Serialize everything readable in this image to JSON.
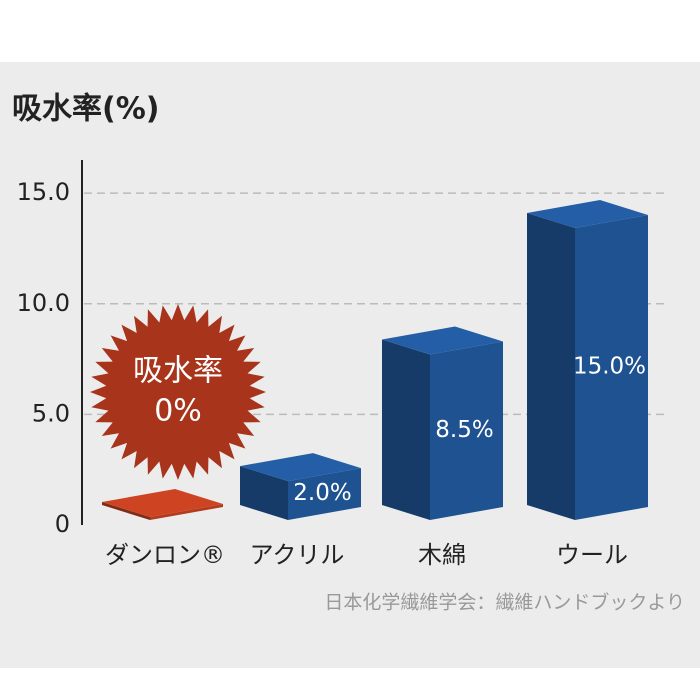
{
  "chart_data": {
    "type": "bar3d",
    "title": "吸水率(%)",
    "categories": [
      "ダンロン®",
      "アクリル",
      "木綿",
      "ウール"
    ],
    "values": [
      0,
      2.0,
      8.5,
      15.0
    ],
    "value_labels": [
      "0%",
      "2.0%",
      "8.5%",
      "15.0%"
    ],
    "colors": [
      "#b33b1e",
      "#1f5291",
      "#1f5291",
      "#1f5291"
    ],
    "ylim": [
      0,
      16.5
    ],
    "yticks": [
      0,
      {
        "value": 5,
        "label": "5.0"
      },
      {
        "value": 10,
        "label": "10.0"
      },
      {
        "value": 15,
        "label": "15.0"
      }
    ],
    "grid": true,
    "annotation": "吸水率",
    "source": "日本化学繊維学会：繊維ハンドブックより"
  }
}
